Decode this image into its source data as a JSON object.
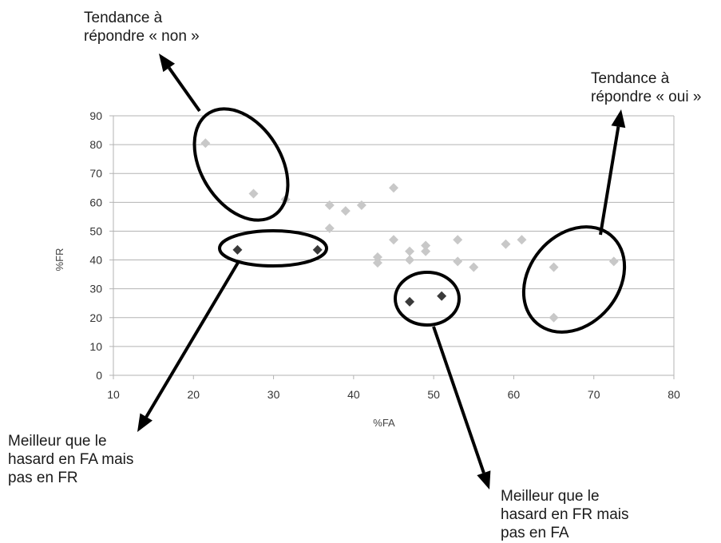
{
  "chart_data": {
    "type": "scatter",
    "xlabel": "%FA",
    "ylabel": "%FR",
    "xlim": [
      10,
      80
    ],
    "ylim": [
      0,
      90
    ],
    "x_ticks": [
      10,
      20,
      30,
      40,
      50,
      60,
      70,
      80
    ],
    "y_ticks": [
      0,
      10,
      20,
      30,
      40,
      50,
      60,
      70,
      80,
      90
    ],
    "grid": "horizontal",
    "colors": {
      "light_points": "#c8c8c8",
      "dark_points": "#3a3a3a",
      "gridline": "#b3b3b3",
      "annotation": "#000000"
    },
    "series": [
      {
        "color": "#c8c8c8",
        "points": [
          {
            "x": 21.5,
            "y": 80.5
          },
          {
            "x": 27.5,
            "y": 63
          },
          {
            "x": 31.5,
            "y": 61
          },
          {
            "x": 37,
            "y": 59
          },
          {
            "x": 39,
            "y": 57
          },
          {
            "x": 41,
            "y": 59
          },
          {
            "x": 45,
            "y": 65
          },
          {
            "x": 37,
            "y": 51
          },
          {
            "x": 45,
            "y": 47
          },
          {
            "x": 43,
            "y": 41
          },
          {
            "x": 43,
            "y": 39
          },
          {
            "x": 47,
            "y": 43
          },
          {
            "x": 47,
            "y": 40
          },
          {
            "x": 49,
            "y": 45
          },
          {
            "x": 49,
            "y": 43
          },
          {
            "x": 53,
            "y": 47
          },
          {
            "x": 53,
            "y": 39.5
          },
          {
            "x": 55,
            "y": 37.5
          },
          {
            "x": 59,
            "y": 45.5
          },
          {
            "x": 61,
            "y": 47
          },
          {
            "x": 65,
            "y": 37.5
          },
          {
            "x": 65,
            "y": 20
          },
          {
            "x": 72.5,
            "y": 39.5
          }
        ]
      },
      {
        "color": "#3a3a3a",
        "points": [
          {
            "x": 25.5,
            "y": 43.5
          },
          {
            "x": 35.5,
            "y": 43.5
          },
          {
            "x": 47,
            "y": 25.5
          },
          {
            "x": 51,
            "y": 27.5
          }
        ]
      }
    ],
    "annotations": [
      {
        "lines": [
          "Tendance à",
          "répondre « non »"
        ]
      },
      {
        "lines": [
          "Tendance à",
          "répondre « oui »"
        ]
      },
      {
        "lines": [
          "Meilleur que le",
          "hasard en FA mais",
          "pas en FR"
        ]
      },
      {
        "lines": [
          "Meilleur que le",
          "hasard en FR mais",
          "pas en FA"
        ]
      }
    ]
  }
}
